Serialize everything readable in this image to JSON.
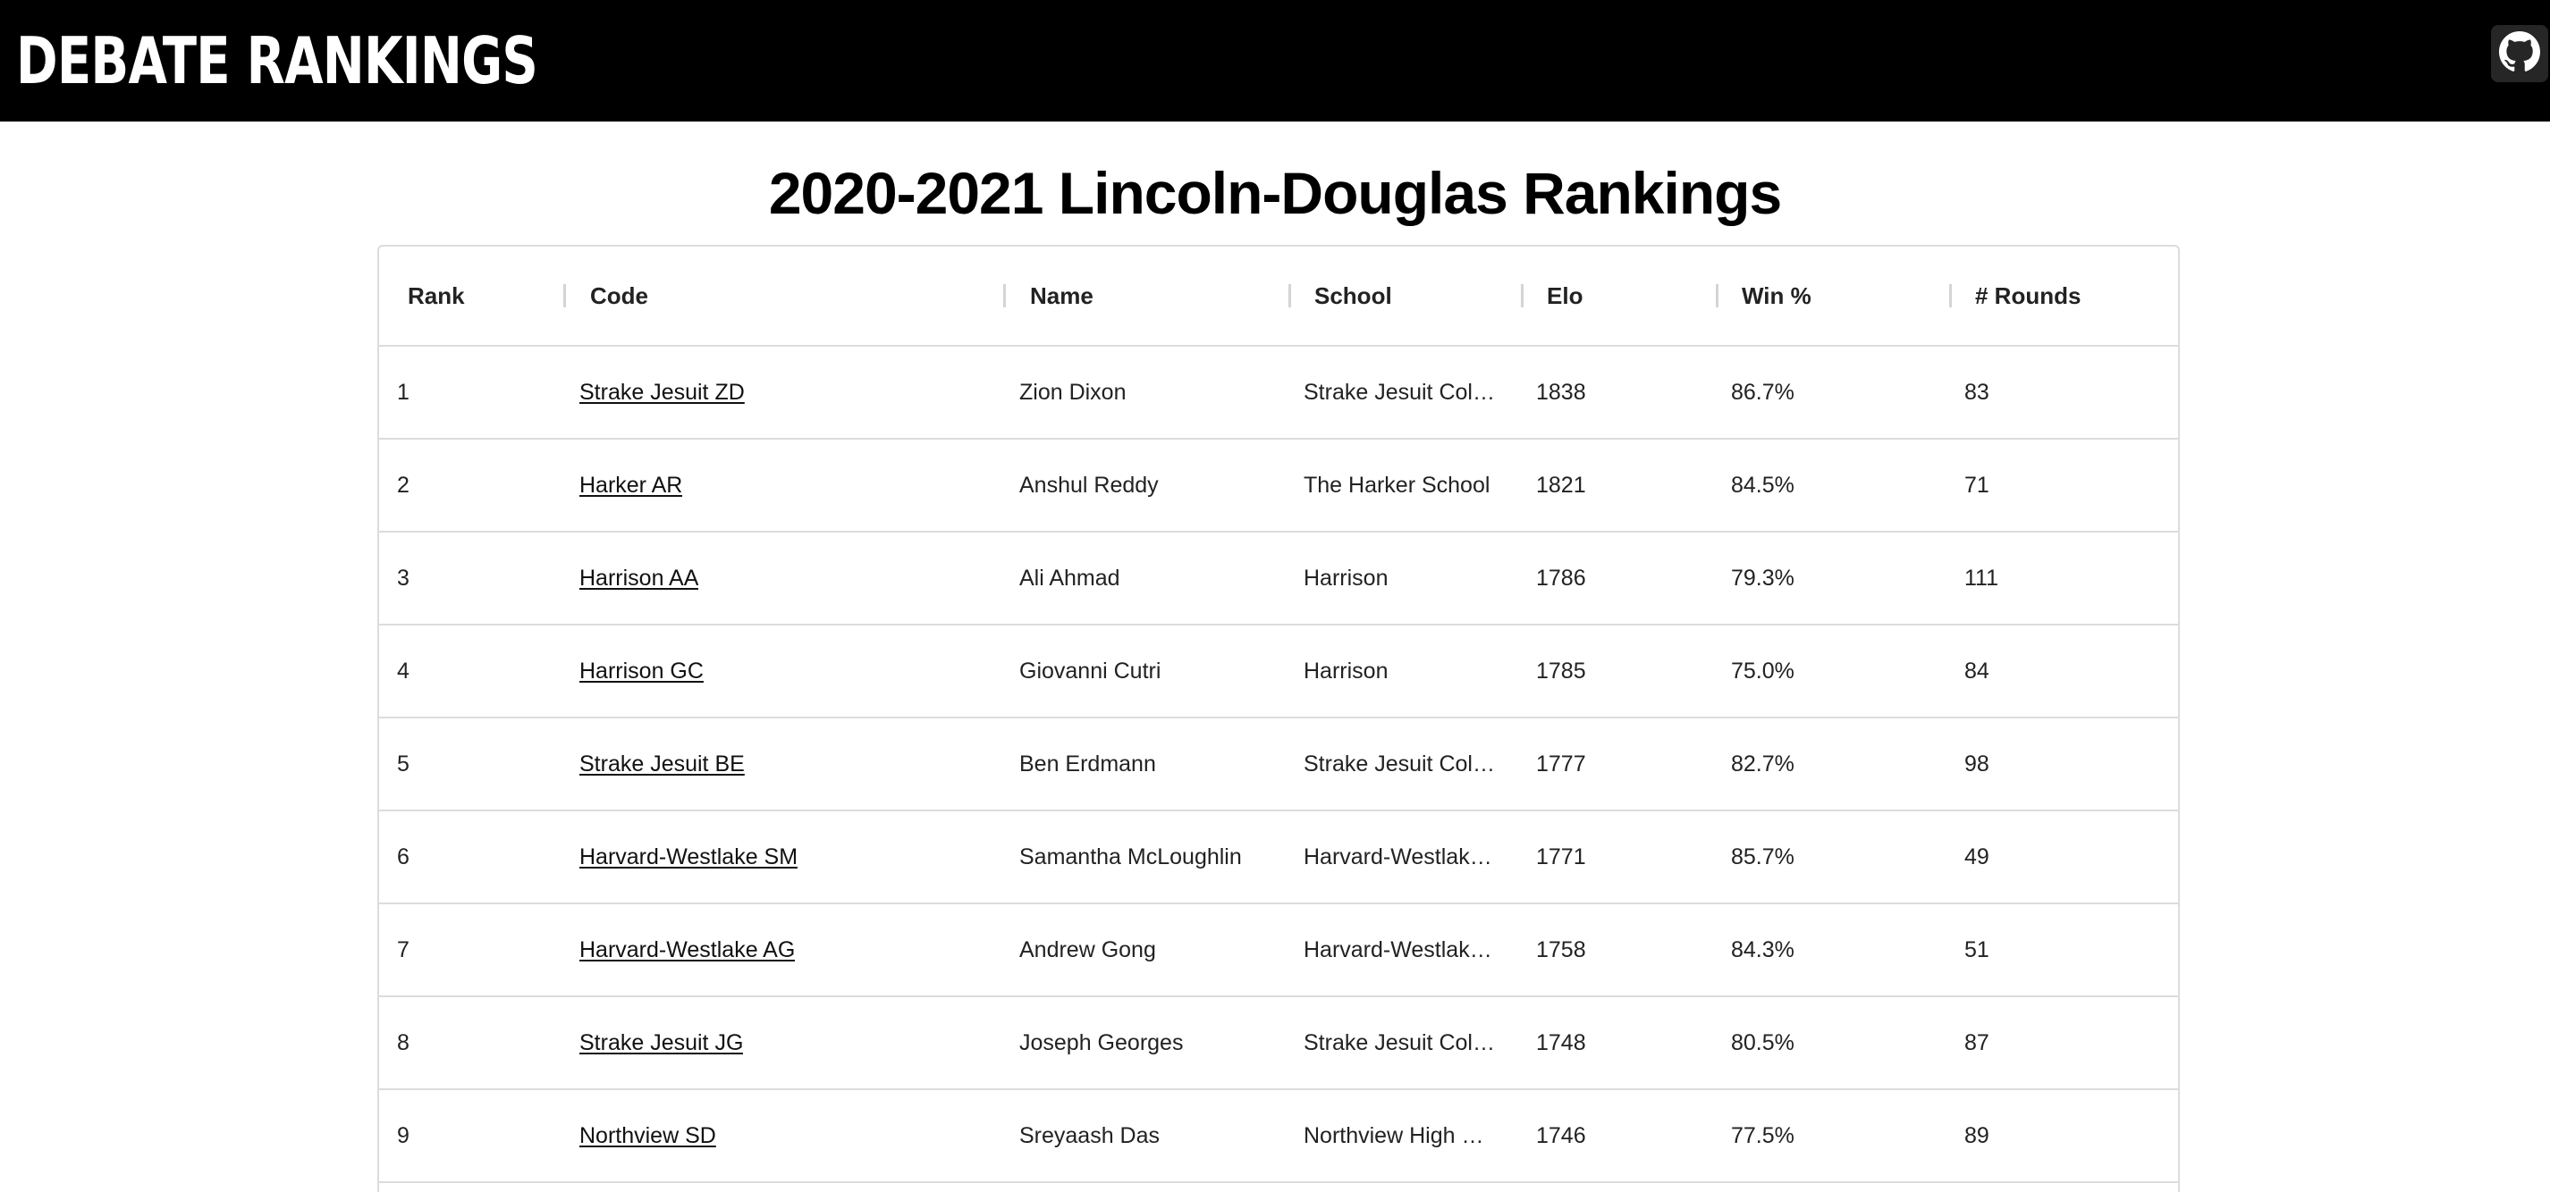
{
  "header": {
    "brand": "DEBATE RANKINGS",
    "github_icon": "github-icon"
  },
  "page": {
    "title": "2020-2021 Lincoln-Douglas Rankings"
  },
  "table": {
    "columns": [
      "Rank",
      "Code",
      "Name",
      "School",
      "Elo",
      "Win %",
      "# Rounds"
    ],
    "rows": [
      {
        "rank": "1",
        "code": "Strake Jesuit ZD",
        "name": "Zion Dixon",
        "school": "Strake Jesuit College Preparatory",
        "elo": "1838",
        "win": "86.7%",
        "rounds": "83"
      },
      {
        "rank": "2",
        "code": "Harker AR",
        "name": "Anshul Reddy",
        "school": "The Harker School",
        "elo": "1821",
        "win": "84.5%",
        "rounds": "71"
      },
      {
        "rank": "3",
        "code": "Harrison AA",
        "name": "Ali Ahmad",
        "school": "Harrison",
        "elo": "1786",
        "win": "79.3%",
        "rounds": "111"
      },
      {
        "rank": "4",
        "code": "Harrison GC",
        "name": "Giovanni Cutri",
        "school": "Harrison",
        "elo": "1785",
        "win": "75.0%",
        "rounds": "84"
      },
      {
        "rank": "5",
        "code": "Strake Jesuit BE",
        "name": "Ben Erdmann",
        "school": "Strake Jesuit College Preparatory",
        "elo": "1777",
        "win": "82.7%",
        "rounds": "98"
      },
      {
        "rank": "6",
        "code": "Harvard-Westlake SM",
        "name": "Samantha McLoughlin",
        "school": "Harvard-Westlake School",
        "elo": "1771",
        "win": "85.7%",
        "rounds": "49"
      },
      {
        "rank": "7",
        "code": "Harvard-Westlake AG",
        "name": "Andrew Gong",
        "school": "Harvard-Westlake School",
        "elo": "1758",
        "win": "84.3%",
        "rounds": "51"
      },
      {
        "rank": "8",
        "code": "Strake Jesuit JG",
        "name": "Joseph Georges",
        "school": "Strake Jesuit College Preparatory",
        "elo": "1748",
        "win": "80.5%",
        "rounds": "87"
      },
      {
        "rank": "9",
        "code": "Northview SD",
        "name": "Sreyaash Das",
        "school": "Northview High School",
        "elo": "1746",
        "win": "77.5%",
        "rounds": "89"
      }
    ]
  }
}
